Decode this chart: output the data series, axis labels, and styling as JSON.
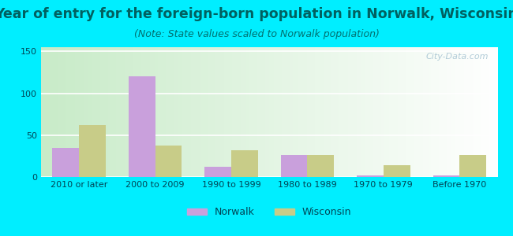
{
  "title": "Year of entry for the foreign-born population in Norwalk, Wisconsin",
  "subtitle": "(Note: State values scaled to Norwalk population)",
  "categories": [
    "2010 or later",
    "2000 to 2009",
    "1990 to 1999",
    "1980 to 1989",
    "1970 to 1979",
    "Before 1970"
  ],
  "norwalk": [
    35,
    120,
    12,
    26,
    2,
    2
  ],
  "wisconsin": [
    62,
    38,
    32,
    26,
    14,
    26
  ],
  "norwalk_color": "#c9a0dc",
  "wisconsin_color": "#c8cc88",
  "background_outer": "#00eeff",
  "ylim": [
    0,
    155
  ],
  "yticks": [
    0,
    50,
    100,
    150
  ],
  "bar_width": 0.35,
  "title_fontsize": 12.5,
  "subtitle_fontsize": 9,
  "tick_fontsize": 8,
  "legend_fontsize": 9,
  "title_color": "#006060",
  "subtitle_color": "#007070",
  "tick_color": "#004455",
  "watermark": "City-Data.com"
}
